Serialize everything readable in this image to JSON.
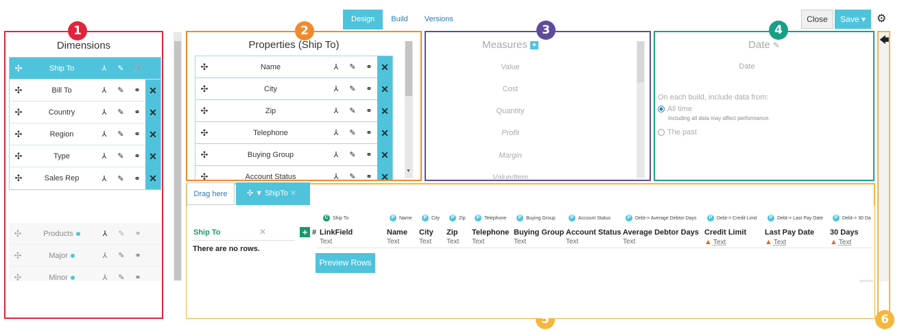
{
  "nav": {
    "tabs": [
      "Design",
      "Build",
      "Versions"
    ],
    "close": "Close",
    "save": "Save ▾"
  },
  "colors": {
    "accent": "#4fc3dc",
    "red": "#e0243b",
    "orange": "#ef8b2c",
    "purple": "#5e4b9e",
    "green": "#17a086",
    "yellow": "#f4b63c"
  },
  "badges": [
    "1",
    "2",
    "3",
    "4",
    "5",
    "6"
  ],
  "dimensions": {
    "title": "Dimensions",
    "items": [
      "Ship To",
      "Bill To",
      "Country",
      "Region",
      "Type",
      "Sales Rep"
    ],
    "other": [
      "Products",
      "Major",
      "Minor"
    ]
  },
  "properties": {
    "title": "Properties (Ship To)",
    "items": [
      "Name",
      "City",
      "Zip",
      "Telephone",
      "Buying Group",
      "Account Status"
    ]
  },
  "measures": {
    "title": "Measures",
    "items": [
      "Value",
      "Cost",
      "Quantity",
      "Profit",
      "Margin",
      "Value/Item"
    ]
  },
  "date": {
    "title": "Date",
    "label": "Date",
    "build_text": "On each build, include data from:",
    "opt_all": "All time",
    "opt_all_note": "Including all data may affect performance.",
    "opt_past": "The past"
  },
  "bottom": {
    "drag_here": "Drag here",
    "tab_label": "ShipTo",
    "ship_to": "Ship To",
    "no_rows": "There are no rows.",
    "preview": "Preview Rows",
    "hash": "#",
    "headers": [
      "Ship To",
      "Name",
      "City",
      "Zip",
      "Telephone",
      "Buying Group",
      "Account Status",
      "Debt-> Average Debtor Days",
      "Debt-> Credit Limit",
      "Debt-> Last Pay Date",
      "Debt-> 30 Da"
    ],
    "fields": [
      "LinkField",
      "Name",
      "City",
      "Zip",
      "Telephone",
      "Buying Group",
      "Account Status",
      "Average Debtor Days",
      "Credit Limit",
      "Last Pay Date",
      "30 Days"
    ],
    "type": "Text"
  }
}
